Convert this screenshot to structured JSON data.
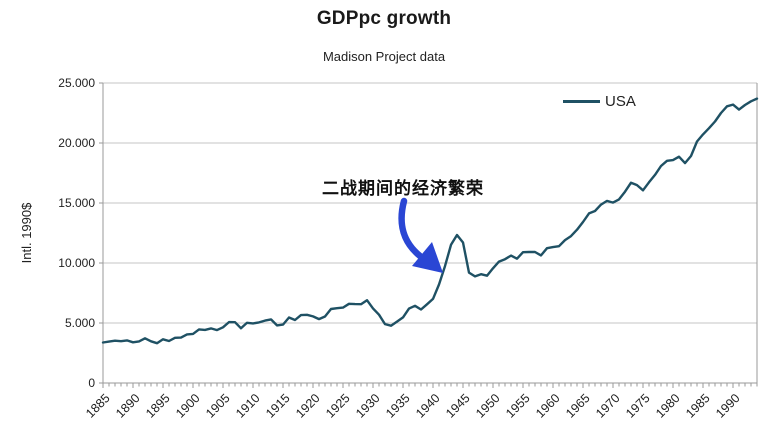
{
  "chart": {
    "title": "GDPpc growth",
    "subtitle": "Madison Project data",
    "y_axis_title": "Intl. 1990$",
    "legend_label": "USA",
    "annotation": {
      "text": "二战期间的经济繁荣",
      "points_to_year": 1940
    },
    "colors": {
      "series": "#1f5164",
      "arrow": "#2a46d4",
      "gridline": "#c6c6c6",
      "axis": "#9a9a9a",
      "text": "#222222"
    }
  },
  "chart_data": {
    "type": "line",
    "title": "GDPpc growth",
    "subtitle": "Madison Project data",
    "xlabel": "",
    "ylabel": "Intl. 1990$",
    "ylim": [
      0,
      25000
    ],
    "grid": true,
    "legend_position": "top-right",
    "y_tick_values": [
      0,
      5000,
      10000,
      15000,
      20000,
      25000
    ],
    "y_tick_labels": [
      "0",
      "5.000",
      "10.000",
      "15.000",
      "20.000",
      "25.000"
    ],
    "x_start": 1885,
    "x_end": 1994,
    "x_tick_years": [
      1885,
      1890,
      1895,
      1900,
      1905,
      1910,
      1915,
      1920,
      1925,
      1930,
      1935,
      1940,
      1945,
      1950,
      1955,
      1960,
      1965,
      1970,
      1975,
      1980,
      1985,
      1990
    ],
    "series": [
      {
        "name": "USA",
        "color": "#1f5164",
        "values": [
          3378,
          3453,
          3527,
          3482,
          3552,
          3392,
          3467,
          3728,
          3478,
          3314,
          3644,
          3504,
          3769,
          3780,
          4051,
          4091,
          4464,
          4421,
          4551,
          4410,
          4642,
          5079,
          5065,
          4561,
          5017,
          4964,
          5046,
          5201,
          5301,
          4799,
          4864,
          5459,
          5248,
          5659,
          5680,
          5552,
          5323,
          5540,
          6164,
          6233,
          6282,
          6602,
          6576,
          6569,
          6899,
          6213,
          5691,
          4908,
          4777,
          5114,
          5467,
          6204,
          6430,
          6126,
          6561,
          7010,
          8206,
          9741,
          11518,
          12333,
          11709,
          9197,
          8886,
          9065,
          8944,
          9561,
          10116,
          10316,
          10613,
          10359,
          10897,
          10914,
          10920,
          10631,
          11230,
          11328,
          11402,
          11905,
          12242,
          12773,
          13419,
          14134,
          14330,
          14863,
          15179,
          15030,
          15304,
          15944,
          16689,
          16491,
          16060,
          16725,
          17340,
          18087,
          18515,
          18577,
          18856,
          18325,
          18920,
          20123,
          20717,
          21236,
          21788,
          22499,
          23059,
          23201,
          22785,
          23169,
          23477,
          23700
        ]
      }
    ],
    "annotations": [
      {
        "text": "二战期间的经济繁荣",
        "year": 1940,
        "value": 8500
      }
    ]
  }
}
